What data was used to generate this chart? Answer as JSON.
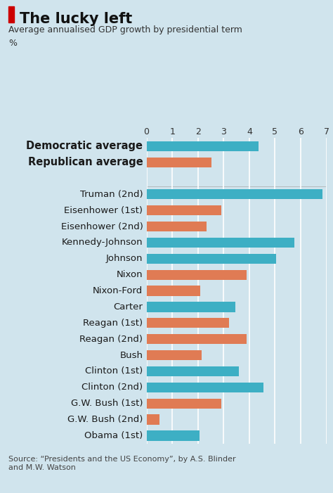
{
  "title": "The lucky left",
  "subtitle": "Average annualised GDP growth by presidential term",
  "ylabel_unit": "%",
  "source": "Source: “Presidents and the US Economy”, by A.S. Blinder\nand M.W. Watson",
  "background_color": "#d0e4ed",
  "dem_color": "#3dafc4",
  "rep_color": "#e07b54",
  "xlim": [
    0,
    7
  ],
  "xticks": [
    0,
    1,
    2,
    3,
    4,
    5,
    6,
    7
  ],
  "categories": [
    "Democratic average",
    "Republican average",
    "",
    "Truman (2nd)",
    "Eisenhower (1st)",
    "Eisenhower (2nd)",
    "Kennedy-Johnson",
    "Johnson",
    "Nixon",
    "Nixon-Ford",
    "Carter",
    "Reagan (1st)",
    "Reagan (2nd)",
    "Bush",
    "Clinton (1st)",
    "Clinton (2nd)",
    "G.W. Bush (1st)",
    "G.W. Bush (2nd)",
    "Obama (1st)"
  ],
  "values": [
    4.35,
    2.54,
    0,
    6.85,
    2.9,
    2.35,
    5.75,
    5.05,
    3.9,
    2.1,
    3.45,
    3.2,
    3.9,
    2.15,
    3.6,
    4.55,
    2.9,
    0.5,
    2.05
  ],
  "colors": [
    "#3dafc4",
    "#e07b54",
    "#d0e4ed",
    "#3dafc4",
    "#e07b54",
    "#e07b54",
    "#3dafc4",
    "#3dafc4",
    "#e07b54",
    "#e07b54",
    "#3dafc4",
    "#e07b54",
    "#e07b54",
    "#e07b54",
    "#3dafc4",
    "#3dafc4",
    "#e07b54",
    "#e07b54",
    "#3dafc4"
  ],
  "bold_labels": [
    true,
    true,
    false,
    false,
    false,
    false,
    false,
    false,
    false,
    false,
    false,
    false,
    false,
    false,
    false,
    false,
    false,
    false,
    false
  ],
  "red_accent_color": "#cc0000"
}
